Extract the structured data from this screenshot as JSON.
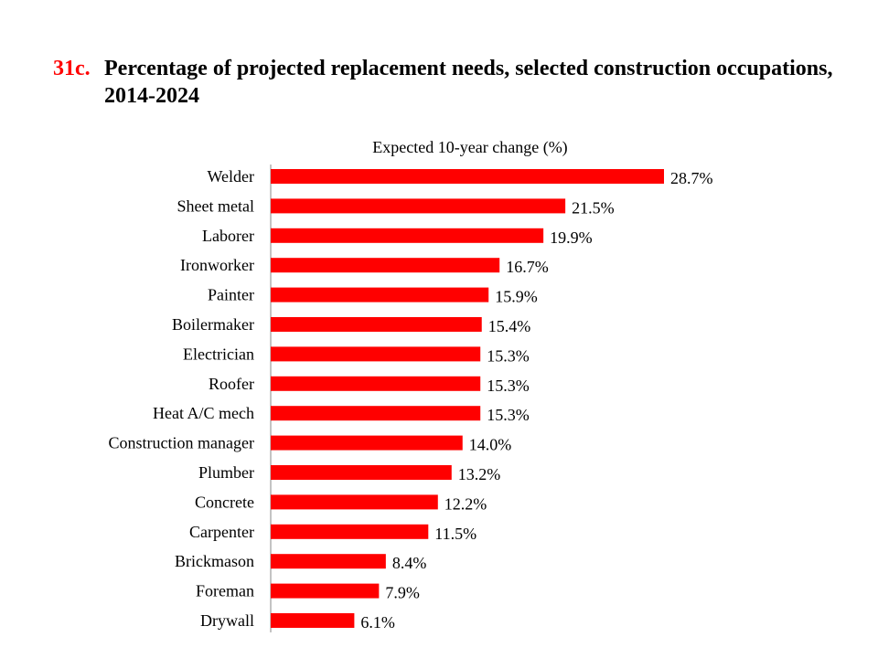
{
  "title": {
    "number": "31c.",
    "text": "Percentage of projected replacement needs, selected construction occupations, 2014-2024"
  },
  "chart_data": {
    "type": "bar",
    "orientation": "horizontal",
    "title": "Percentage of projected replacement needs, selected construction occupations, 2014-2024",
    "xlabel": "Expected  10-year change  (%)",
    "ylabel": "",
    "categories": [
      "Welder",
      "Sheet metal",
      "Laborer",
      "Ironworker",
      "Painter",
      "Boilermaker",
      "Electrician",
      "Roofer",
      "Heat A/C mech",
      "Construction manager",
      "Plumber",
      "Concrete",
      "Carpenter",
      "Brickmason",
      "Foreman",
      "Drywall"
    ],
    "values": [
      28.7,
      21.5,
      19.9,
      16.7,
      15.9,
      15.4,
      15.3,
      15.3,
      15.3,
      14.0,
      13.2,
      12.2,
      11.5,
      8.4,
      7.9,
      6.1
    ],
    "value_labels": [
      "28.7%",
      "21.5%",
      "19.9%",
      "16.7%",
      "15.9%",
      "15.4%",
      "15.3%",
      "15.3%",
      "15.3%",
      "14.0%",
      "13.2%",
      "12.2%",
      "11.5%",
      "8.4%",
      "7.9%",
      "6.1%"
    ],
    "xlim": [
      0,
      30
    ],
    "grid": false,
    "legend": "none",
    "bar_color": "#ff0000",
    "title_number_color": "#ff0000"
  }
}
